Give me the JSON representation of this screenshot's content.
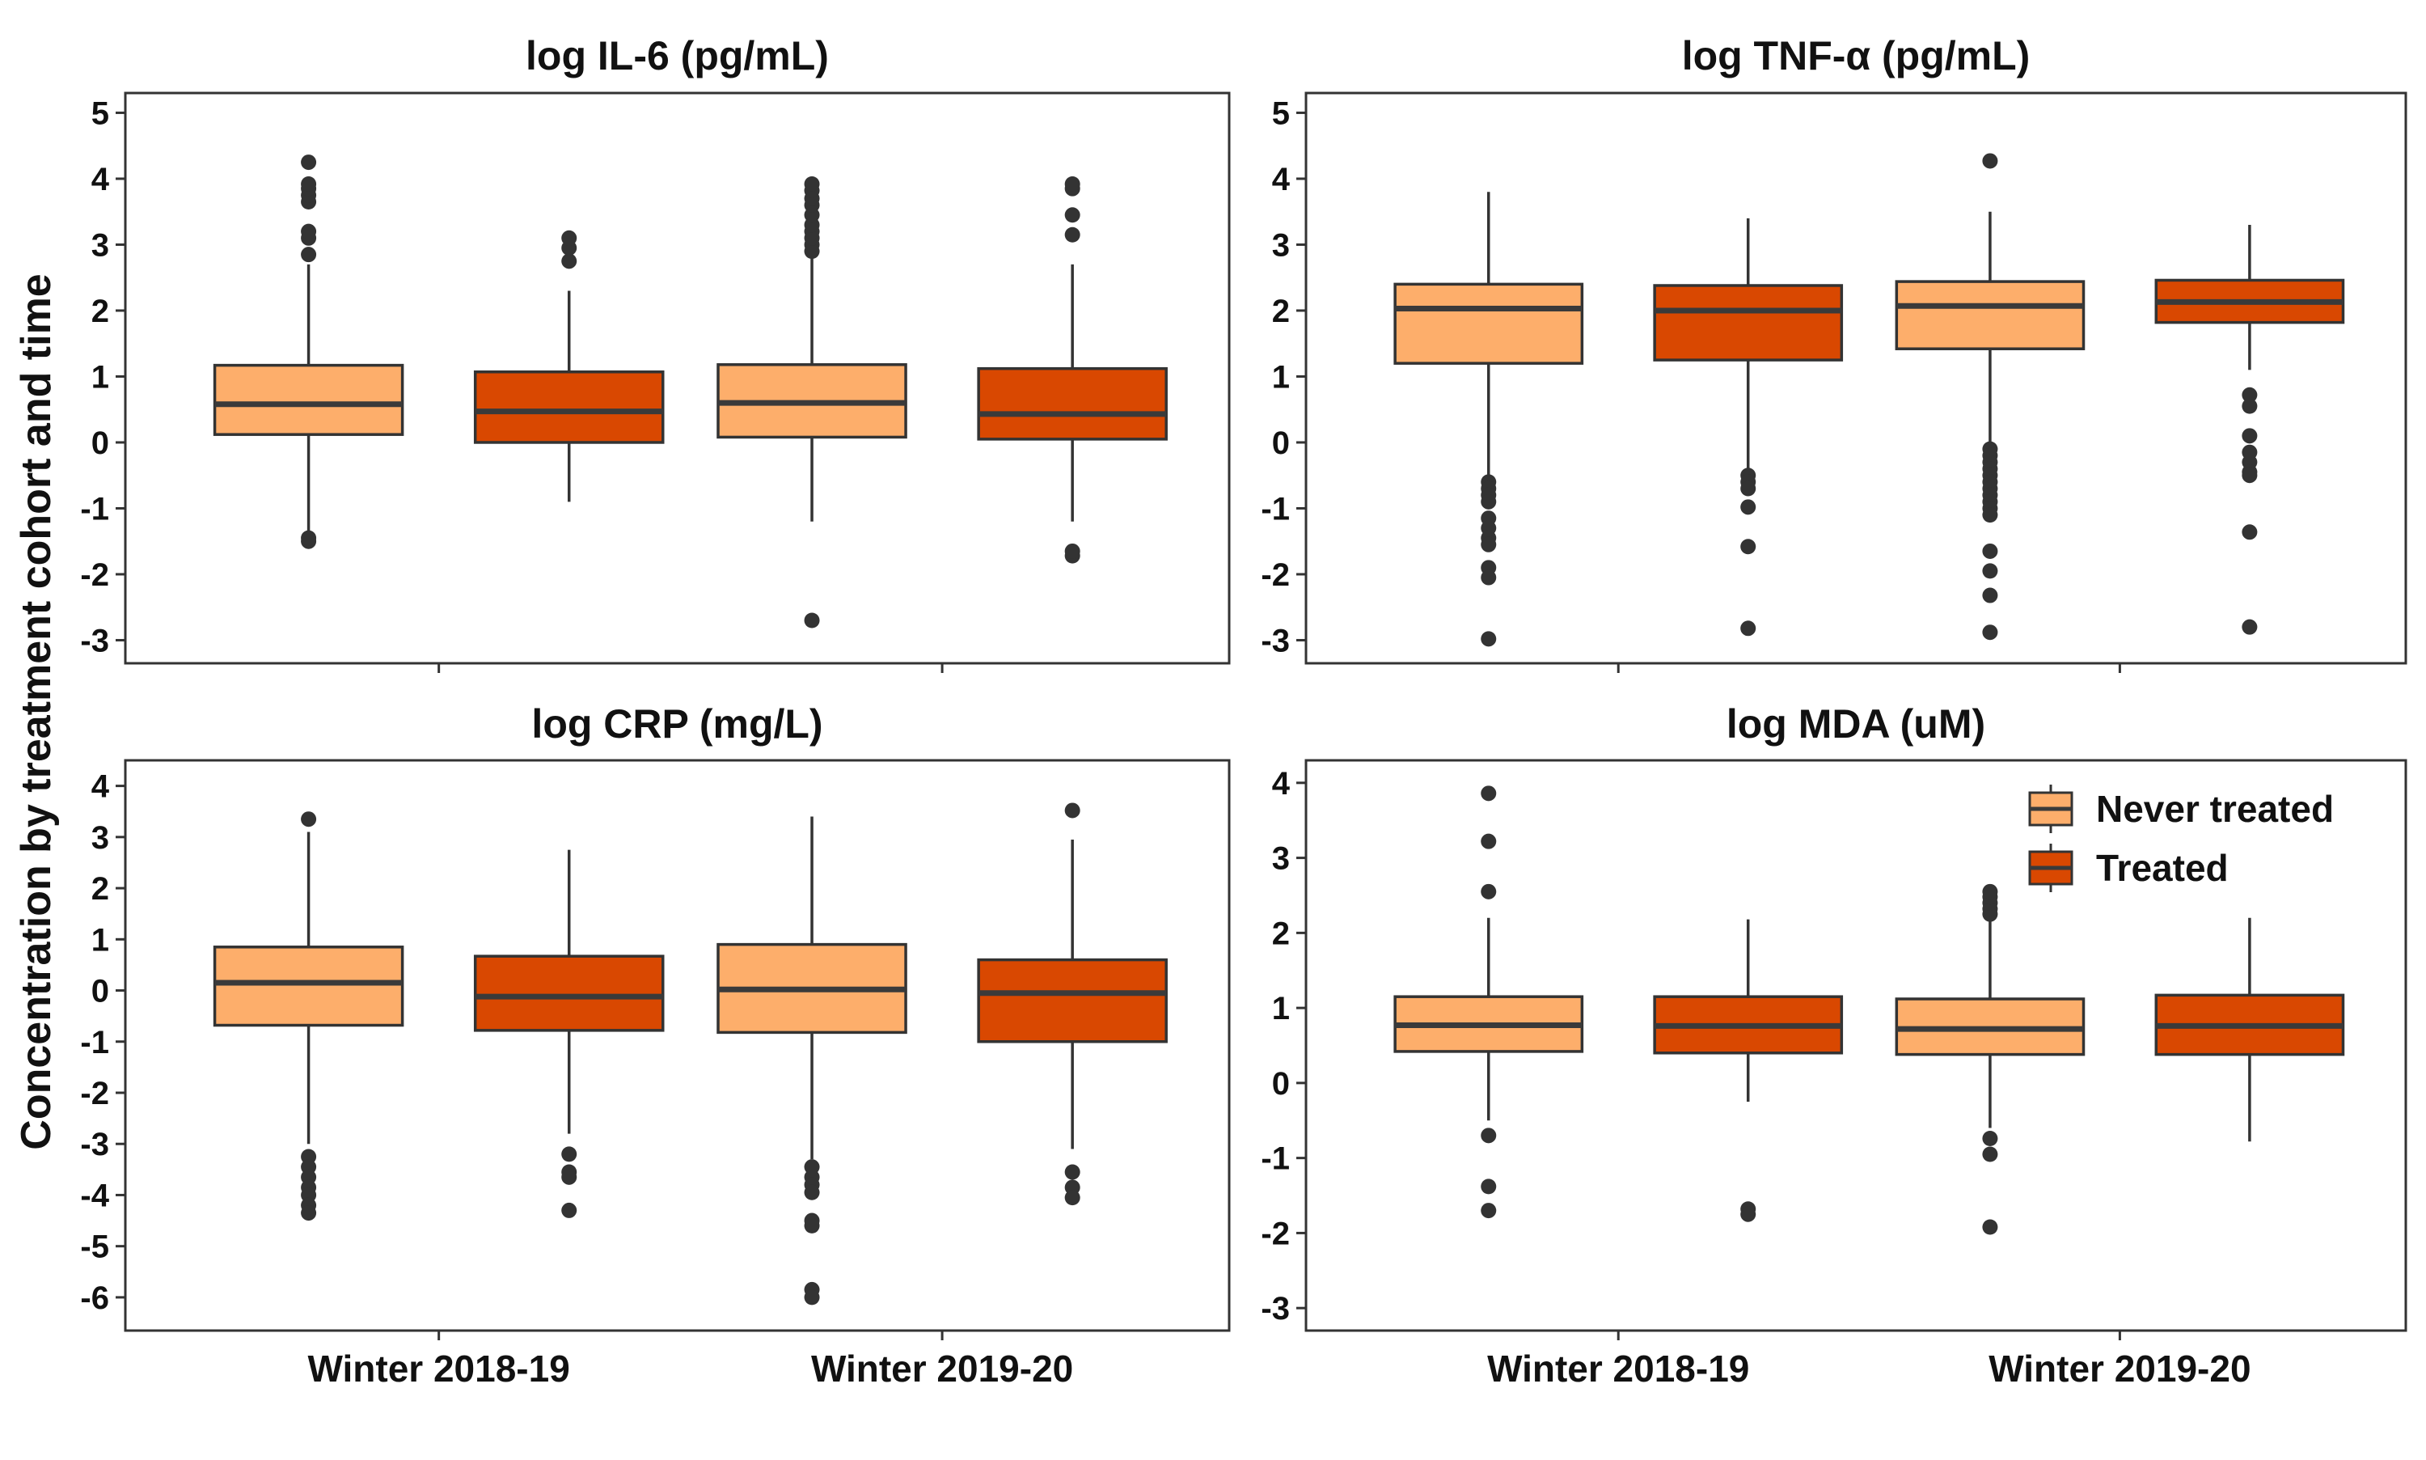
{
  "y_axis_title": "Concentration by treatment cohort and time",
  "colors": {
    "never_treated": "#FDAE6B",
    "treated": "#D94801",
    "outline": "#333333",
    "median": "#3a3a3a"
  },
  "legend": {
    "placement": "top-right of bottom-right panel",
    "items": [
      {
        "key": "never_treated",
        "label": "Never treated"
      },
      {
        "key": "treated",
        "label": "Treated"
      }
    ]
  },
  "chart_data": [
    {
      "type": "box",
      "title": "log IL-6 (pg/mL)",
      "categories": [
        "Winter 2018-19",
        "Winter 2019-20"
      ],
      "show_x_labels": false,
      "ylim": [
        -3.35,
        5.3
      ],
      "yticks": [
        -3,
        -2,
        -1,
        0,
        1,
        2,
        3,
        4,
        5
      ],
      "series": [
        {
          "name": "Never treated",
          "boxes": [
            {
              "q1": 0.12,
              "median": 0.58,
              "q3": 1.17,
              "whisker_low": -1.4,
              "whisker_high": 2.7,
              "outliers": [
                -1.5,
                -1.45,
                2.85,
                3.1,
                3.2,
                3.65,
                3.75,
                3.85,
                3.92,
                4.25
              ]
            },
            {
              "q1": 0.08,
              "median": 0.6,
              "q3": 1.18,
              "whisker_low": -1.2,
              "whisker_high": 2.8,
              "outliers": [
                -2.7,
                2.9,
                3.0,
                3.1,
                3.2,
                3.3,
                3.45,
                3.6,
                3.7,
                3.82,
                3.92
              ]
            }
          ]
        },
        {
          "name": "Treated",
          "boxes": [
            {
              "q1": 0.0,
              "median": 0.47,
              "q3": 1.07,
              "whisker_low": -0.9,
              "whisker_high": 2.3,
              "outliers": [
                2.75,
                2.95,
                3.1
              ]
            },
            {
              "q1": 0.05,
              "median": 0.43,
              "q3": 1.12,
              "whisker_low": -1.2,
              "whisker_high": 2.7,
              "outliers": [
                -1.72,
                -1.65,
                3.15,
                3.45,
                3.85,
                3.92
              ]
            }
          ]
        }
      ]
    },
    {
      "type": "box",
      "title": "log TNF-α (pg/mL)",
      "categories": [
        "Winter 2018-19",
        "Winter 2019-20"
      ],
      "show_x_labels": false,
      "ylim": [
        -3.35,
        5.3
      ],
      "yticks": [
        -3,
        -2,
        -1,
        0,
        1,
        2,
        3,
        4,
        5
      ],
      "series": [
        {
          "name": "Never treated",
          "boxes": [
            {
              "q1": 1.2,
              "median": 2.03,
              "q3": 2.4,
              "whisker_low": -0.5,
              "whisker_high": 3.8,
              "outliers": [
                -0.6,
                -0.7,
                -0.8,
                -0.9,
                -1.15,
                -1.3,
                -1.45,
                -1.55,
                -1.9,
                -2.05,
                -2.98
              ]
            },
            {
              "q1": 1.42,
              "median": 2.07,
              "q3": 2.44,
              "whisker_low": 0.0,
              "whisker_high": 3.5,
              "outliers": [
                -0.1,
                -0.2,
                -0.3,
                -0.4,
                -0.5,
                -0.6,
                -0.7,
                -0.8,
                -0.9,
                -1.0,
                -1.1,
                -1.65,
                -1.95,
                -2.32,
                -2.88,
                4.27
              ]
            }
          ]
        },
        {
          "name": "Treated",
          "boxes": [
            {
              "q1": 1.25,
              "median": 2.0,
              "q3": 2.38,
              "whisker_low": -0.4,
              "whisker_high": 3.4,
              "outliers": [
                -0.5,
                -0.6,
                -0.7,
                -0.98,
                -1.58,
                -2.82
              ]
            },
            {
              "q1": 1.82,
              "median": 2.13,
              "q3": 2.46,
              "whisker_low": 1.1,
              "whisker_high": 3.3,
              "outliers": [
                0.72,
                0.55,
                0.1,
                -0.15,
                -0.3,
                -0.45,
                -0.5,
                -1.36,
                -2.8
              ]
            }
          ]
        }
      ]
    },
    {
      "type": "box",
      "title": "log CRP (mg/L)",
      "categories": [
        "Winter 2018-19",
        "Winter 2019-20"
      ],
      "show_x_labels": true,
      "ylim": [
        -6.65,
        4.5
      ],
      "yticks": [
        -6,
        -5,
        -4,
        -3,
        -2,
        -1,
        0,
        1,
        2,
        3,
        4
      ],
      "series": [
        {
          "name": "Never treated",
          "boxes": [
            {
              "q1": -0.68,
              "median": 0.15,
              "q3": 0.85,
              "whisker_low": -3.0,
              "whisker_high": 3.1,
              "outliers": [
                -3.25,
                -3.45,
                -3.65,
                -3.85,
                -4.0,
                -4.2,
                -4.35,
                3.35
              ]
            },
            {
              "q1": -0.82,
              "median": 0.02,
              "q3": 0.9,
              "whisker_low": -3.3,
              "whisker_high": 3.4,
              "outliers": [
                -3.45,
                -3.65,
                -3.8,
                -3.95,
                -4.5,
                -4.6,
                -5.85,
                -6.0
              ]
            }
          ]
        },
        {
          "name": "Treated",
          "boxes": [
            {
              "q1": -0.78,
              "median": -0.12,
              "q3": 0.67,
              "whisker_low": -2.8,
              "whisker_high": 2.75,
              "outliers": [
                -3.2,
                -3.55,
                -3.65,
                -4.3
              ]
            },
            {
              "q1": -1.0,
              "median": -0.05,
              "q3": 0.6,
              "whisker_low": -3.1,
              "whisker_high": 2.95,
              "outliers": [
                -3.55,
                -3.85,
                -4.05,
                3.52
              ]
            }
          ]
        }
      ]
    },
    {
      "type": "box",
      "title": "log MDA (uM)",
      "categories": [
        "Winter 2018-19",
        "Winter 2019-20"
      ],
      "show_x_labels": true,
      "ylim": [
        -3.3,
        4.3
      ],
      "yticks": [
        -3,
        -2,
        -1,
        0,
        1,
        2,
        3,
        4
      ],
      "series": [
        {
          "name": "Never treated",
          "boxes": [
            {
              "q1": 0.42,
              "median": 0.77,
              "q3": 1.15,
              "whisker_low": -0.5,
              "whisker_high": 2.2,
              "outliers": [
                -0.7,
                -1.38,
                -1.7,
                2.55,
                3.22,
                3.86
              ]
            },
            {
              "q1": 0.38,
              "median": 0.72,
              "q3": 1.12,
              "whisker_low": -0.6,
              "whisker_high": 2.2,
              "outliers": [
                -0.74,
                -0.95,
                -1.92,
                2.25,
                2.32,
                2.4,
                2.48,
                2.55
              ]
            }
          ]
        },
        {
          "name": "Treated",
          "boxes": [
            {
              "q1": 0.4,
              "median": 0.76,
              "q3": 1.15,
              "whisker_low": -0.25,
              "whisker_high": 2.18,
              "outliers": [
                -1.68,
                -1.75
              ]
            },
            {
              "q1": 0.38,
              "median": 0.76,
              "q3": 1.17,
              "whisker_low": -0.78,
              "whisker_high": 2.2,
              "outliers": []
            }
          ]
        }
      ]
    }
  ]
}
